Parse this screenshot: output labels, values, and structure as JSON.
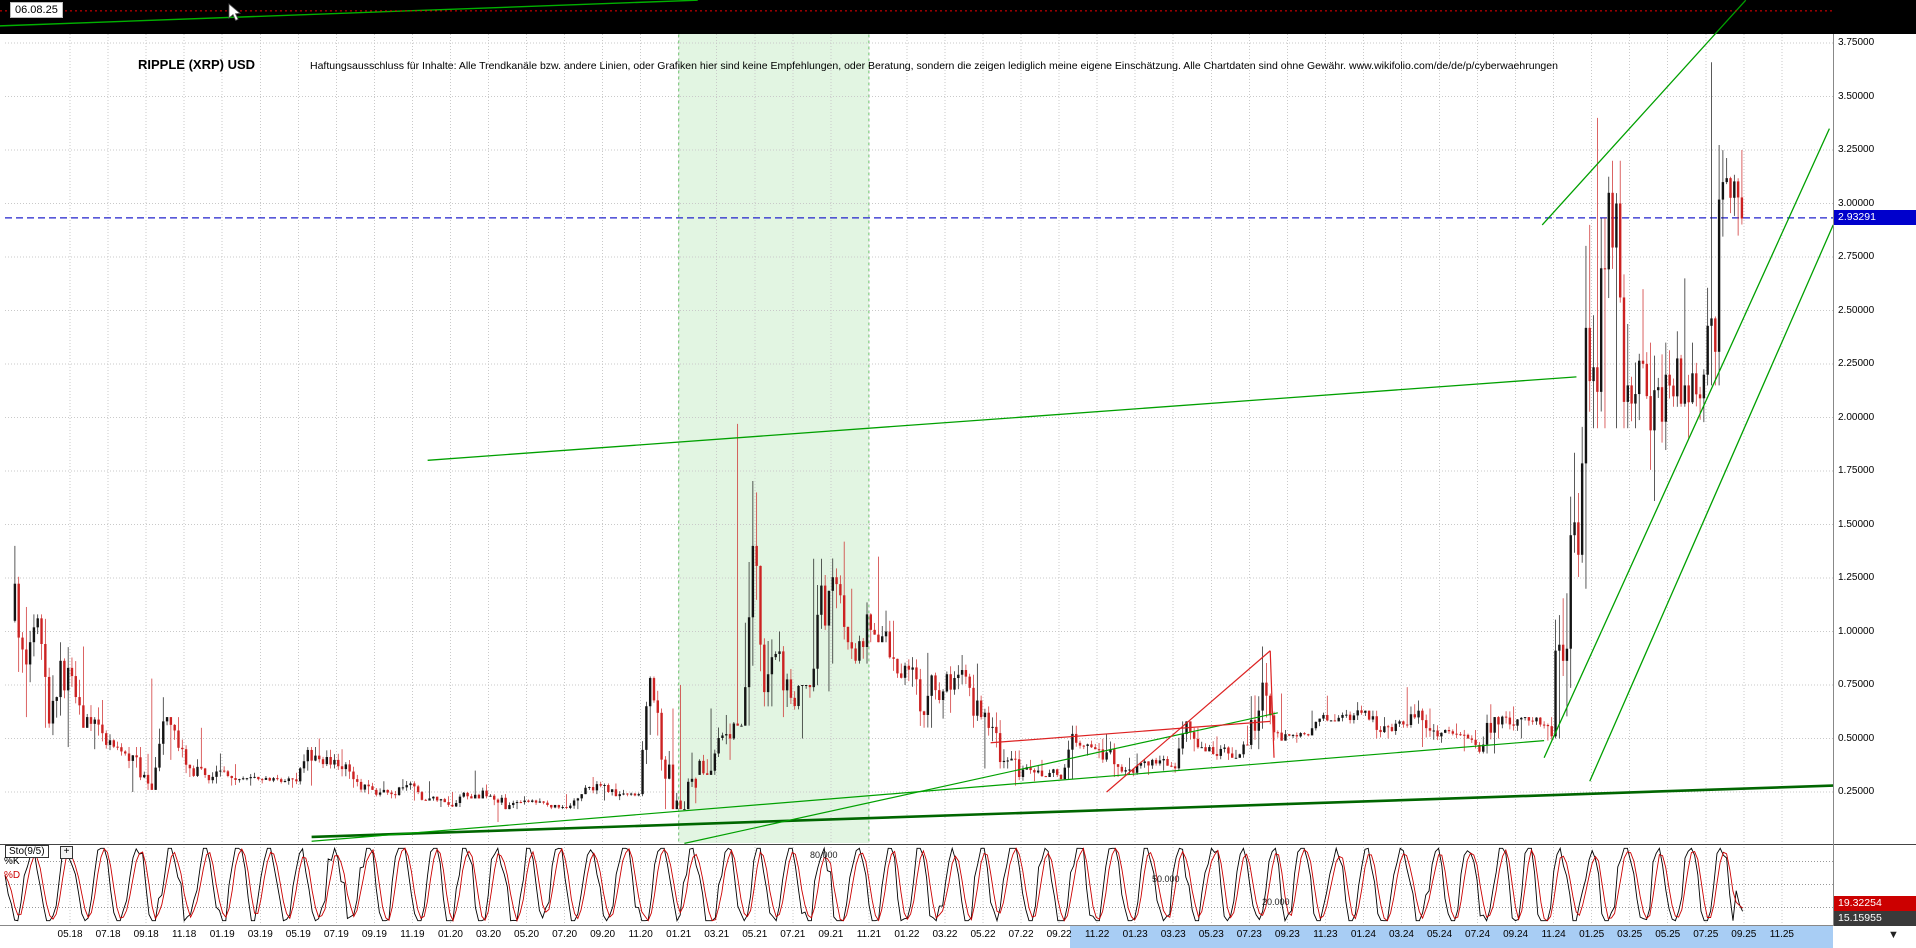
{
  "header": {
    "date_label": "06.08.25",
    "title": "RIPPLE (XRP) USD",
    "disclaimer": "Haftungsausschluss für Inhalte: Alle Trendkanäle bzw. andere Linien, oder Grafiken hier sind keine Empfehlungen, oder Beratung, sondern die zeigen lediglich meine eigene Einschätzung. Alle Chartdaten sind ohne Gewähr.  www.wikifolio.com/de/de/p/cyberwaehrungen"
  },
  "price_axis": {
    "labels": [
      "3.75000",
      "3.50000",
      "3.25000",
      "3.00000",
      "2.75000",
      "2.50000",
      "2.25000",
      "2.00000",
      "1.75000",
      "1.50000",
      "1.25000",
      "1.00000",
      "0.75000",
      "0.50000",
      "0.25000"
    ],
    "current_price": "2.93291"
  },
  "time_axis": {
    "labels": [
      "05.18",
      "07.18",
      "09.18",
      "11.18",
      "01.19",
      "03.19",
      "05.19",
      "07.19",
      "09.19",
      "11.19",
      "01.20",
      "03.20",
      "05.20",
      "07.20",
      "09.20",
      "11.20",
      "01.21",
      "03.21",
      "05.21",
      "07.21",
      "09.21",
      "11.21",
      "01.22",
      "03.22",
      "05.22",
      "07.22",
      "09.22",
      "11.22",
      "01.23",
      "03.23",
      "05.23",
      "07.23",
      "09.23",
      "11.23",
      "01.24",
      "03.24",
      "05.24",
      "07.24",
      "09.24",
      "11.24",
      "01.25",
      "03.25",
      "05.25",
      "07.25",
      "09.25",
      "11.25"
    ],
    "highlighted_from": "11.22"
  },
  "indicator": {
    "name": "Sto(9/5)",
    "add_button": "+",
    "k_label": "%K",
    "d_label": "%D",
    "levels": [
      80,
      50,
      20
    ],
    "level_labels": [
      "80.000",
      "50.000",
      "20.000"
    ],
    "d_value": "19.32254",
    "k_value": "15.15955"
  },
  "icons": {
    "corner": "▼"
  },
  "colors": {
    "up": "#141414",
    "down": "#cc2222",
    "grid": "#c9c9c9",
    "band": "#ddf3dd",
    "band_edge": "#66c866",
    "green": "#00a000",
    "dark_green": "#006600",
    "red_line": "#dd2222",
    "blue_line": "#2222cc",
    "price_tag_bg": "#0000cc",
    "d_tag_bg": "#cc0000",
    "k_tag_bg": "#3a3a3a",
    "highlight": "#a8cdf4",
    "strip": "#000000"
  },
  "chart_data": {
    "type": "candlestick",
    "title": "RIPPLE (XRP) USD",
    "as_of_date": "06.08.25",
    "current_price": 2.93291,
    "y_axis": {
      "min": 0,
      "max": 3.85,
      "tick_step": 0.25
    },
    "x_axis": {
      "start_month": "2018-02",
      "first_tick": "2018-05",
      "months_per_tick": 2,
      "last_tick": "2025-11"
    },
    "monthly_ohlc": {
      "start_month": "2018-02",
      "high": [
        1.4,
        1.08,
        0.95,
        0.93,
        0.68,
        0.52,
        0.46,
        0.78,
        0.6,
        0.55,
        0.43,
        0.38,
        0.34,
        0.33,
        0.34,
        0.46,
        0.5,
        0.45,
        0.33,
        0.3,
        0.31,
        0.3,
        0.23,
        0.25,
        0.35,
        0.24,
        0.23,
        0.22,
        0.21,
        0.24,
        0.32,
        0.29,
        0.26,
        0.79,
        0.64,
        0.75,
        0.64,
        0.61,
        1.97,
        1.65,
        1.0,
        0.75,
        1.34,
        1.42,
        1.2,
        1.35,
        1.05,
        0.88,
        0.9,
        0.89,
        0.85,
        0.65,
        0.45,
        0.4,
        0.4,
        0.56,
        0.49,
        0.52,
        0.41,
        0.43,
        0.42,
        0.58,
        0.55,
        0.51,
        0.56,
        0.93,
        0.71,
        0.53,
        0.63,
        0.7,
        0.67,
        0.63,
        0.6,
        0.74,
        0.64,
        0.57,
        0.54,
        0.66,
        0.65,
        0.6,
        0.6,
        1.63,
        2.9,
        3.4,
        3.2,
        2.6,
        2.35,
        2.65,
        2.35,
        3.66,
        3.25
      ],
      "low": [
        0.6,
        0.55,
        0.46,
        0.55,
        0.45,
        0.42,
        0.25,
        0.26,
        0.4,
        0.32,
        0.29,
        0.28,
        0.28,
        0.29,
        0.27,
        0.28,
        0.36,
        0.27,
        0.24,
        0.22,
        0.22,
        0.21,
        0.18,
        0.18,
        0.22,
        0.11,
        0.17,
        0.19,
        0.17,
        0.17,
        0.24,
        0.21,
        0.23,
        0.23,
        0.17,
        0.17,
        0.33,
        0.4,
        0.56,
        0.65,
        0.6,
        0.5,
        0.72,
        0.85,
        0.85,
        0.95,
        0.75,
        0.55,
        0.55,
        0.62,
        0.55,
        0.36,
        0.28,
        0.3,
        0.32,
        0.31,
        0.42,
        0.32,
        0.32,
        0.33,
        0.35,
        0.34,
        0.44,
        0.4,
        0.41,
        0.45,
        0.49,
        0.48,
        0.51,
        0.58,
        0.57,
        0.5,
        0.5,
        0.55,
        0.46,
        0.48,
        0.44,
        0.43,
        0.5,
        0.5,
        0.49,
        0.5,
        1.2,
        1.95,
        1.95,
        1.95,
        1.61,
        2.05,
        1.9,
        2.15,
        2.85
      ],
      "close": [
        0.95,
        0.57,
        0.83,
        0.6,
        0.47,
        0.43,
        0.33,
        0.58,
        0.45,
        0.36,
        0.35,
        0.31,
        0.31,
        0.31,
        0.3,
        0.42,
        0.4,
        0.31,
        0.26,
        0.24,
        0.29,
        0.22,
        0.19,
        0.23,
        0.23,
        0.17,
        0.21,
        0.2,
        0.18,
        0.24,
        0.28,
        0.24,
        0.24,
        0.62,
        0.21,
        0.27,
        0.43,
        0.57,
        1.4,
        0.88,
        0.69,
        0.74,
        1.19,
        0.95,
        1.08,
        1.0,
        0.84,
        0.61,
        0.72,
        0.82,
        0.6,
        0.39,
        0.32,
        0.35,
        0.33,
        0.48,
        0.45,
        0.38,
        0.34,
        0.4,
        0.37,
        0.53,
        0.46,
        0.43,
        0.47,
        0.7,
        0.52,
        0.52,
        0.61,
        0.61,
        0.62,
        0.53,
        0.58,
        0.63,
        0.51,
        0.52,
        0.47,
        0.6,
        0.56,
        0.58,
        0.51,
        1.45,
        2.17,
        3.05,
        2.15,
        2.1,
        2.2,
        2.15,
        2.2,
        3.1,
        2.93
      ]
    },
    "shaded_region": {
      "start_month_index": 35,
      "end_month_index": 45,
      "label": "2021-01 to 2021-11"
    },
    "trendlines": [
      {
        "name": "old-upper-channel-line",
        "m1": -0.7,
        "p1": 3.83,
        "m2": 36,
        "p2": 3.95,
        "color": "#00b000",
        "w": 1.4
      },
      {
        "name": "long-resistance-line",
        "m1": 21.8,
        "p1": 1.8,
        "m2": 82.2,
        "p2": 2.19,
        "color": "#00a000",
        "w": 1.3
      },
      {
        "name": "rally-channel-upper",
        "m1": 80.4,
        "p1": 2.9,
        "m2": 91.1,
        "p2": 3.95,
        "color": "#00a000",
        "w": 1.3
      },
      {
        "name": "rally-support-1",
        "m1": 80.5,
        "p1": 0.41,
        "m2": 95.5,
        "p2": 3.35,
        "color": "#00a000",
        "w": 1.3
      },
      {
        "name": "rally-support-2",
        "m1": 82.9,
        "p1": 0.3,
        "m2": 95.7,
        "p2": 2.9,
        "color": "#00a000",
        "w": 1.3
      },
      {
        "name": "major-bottom-support",
        "m1": 15.7,
        "p1": 0.04,
        "m2": 95.7,
        "p2": 0.28,
        "color": "#006600",
        "w": 2.6
      },
      {
        "name": "support-fan-a",
        "m1": 15.7,
        "p1": 0.02,
        "m2": 80.5,
        "p2": 0.49,
        "color": "#00a000",
        "w": 1.2
      },
      {
        "name": "support-fan-b",
        "m1": 35.3,
        "p1": 0.01,
        "m2": 66.5,
        "p2": 0.62,
        "color": "#00a000",
        "w": 1.2
      },
      {
        "name": "red-resistance-line",
        "m1": 51.4,
        "p1": 0.48,
        "m2": 66.1,
        "p2": 0.58,
        "color": "#dd2222",
        "w": 1.2
      },
      {
        "name": "red-rising-wedge",
        "m1": 57.5,
        "p1": 0.25,
        "m2": 66.1,
        "p2": 0.91,
        "color": "#dd2222",
        "w": 1.2
      },
      {
        "name": "red-breakdown",
        "m1": 66.1,
        "p1": 0.91,
        "m2": 66.3,
        "p2": 0.41,
        "color": "#dd2222",
        "w": 1.2
      }
    ],
    "price_alert_line": {
      "price": 3.9,
      "style": "dotted",
      "color": "red"
    },
    "current_price_line": {
      "price": 2.93291,
      "style": "dashed",
      "color": "blue"
    },
    "stochastic": {
      "name": "Sto(9/5)",
      "levels": [
        80,
        50,
        20
      ],
      "k_current": 15.15955,
      "d_current": 19.32254
    }
  }
}
